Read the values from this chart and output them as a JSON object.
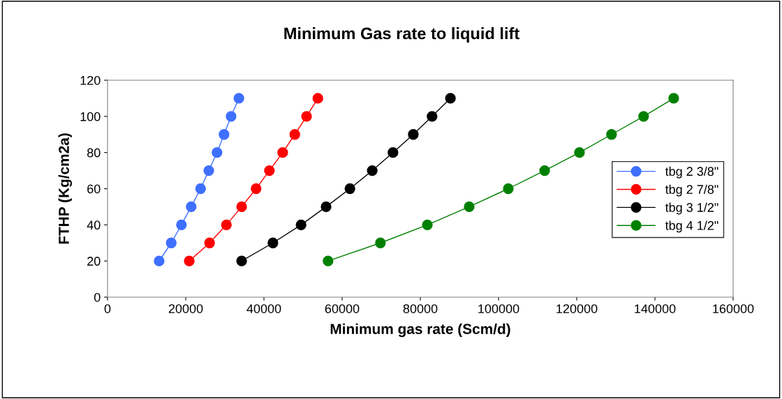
{
  "chart_data": {
    "type": "line",
    "title": "Minimum Gas rate to liquid lift",
    "xlabel": "Minimum gas rate (Scm/d)",
    "ylabel": "FTHP (Kg/cm2a)",
    "xlim": [
      0,
      160000
    ],
    "xticks": [
      0,
      20000,
      40000,
      60000,
      80000,
      100000,
      120000,
      140000,
      160000
    ],
    "ylim": [
      0,
      120
    ],
    "yticks": [
      0,
      20,
      40,
      60,
      80,
      100,
      120
    ],
    "grid": false,
    "legend": "right",
    "marker": "circle",
    "line_style": "solid",
    "series": [
      {
        "name": "tbg 2 3/8\"",
        "color": "#3f6fff",
        "x": [
          13200,
          16300,
          18900,
          21400,
          23800,
          25900,
          28000,
          29800,
          31600,
          33600
        ],
        "values": [
          20,
          30,
          40,
          50,
          60,
          70,
          80,
          90,
          100,
          110
        ]
      },
      {
        "name": "tbg 2 7/8\"",
        "color": "#ff0000",
        "x": [
          20900,
          26100,
          30400,
          34300,
          38000,
          41400,
          44800,
          47900,
          50900,
          53800
        ],
        "values": [
          20,
          30,
          40,
          50,
          60,
          70,
          80,
          90,
          100,
          110
        ]
      },
      {
        "name": "tbg 3 1/2\"",
        "color": "#000000",
        "x": [
          34300,
          42300,
          49500,
          55900,
          62000,
          67700,
          73000,
          78200,
          83000,
          87700
        ],
        "values": [
          20,
          30,
          40,
          50,
          60,
          70,
          80,
          90,
          100,
          110
        ]
      },
      {
        "name": "tbg 4 1/2\"",
        "color": "#008000",
        "x": [
          56400,
          69800,
          81800,
          92500,
          102500,
          111800,
          120700,
          128900,
          137100,
          144800
        ],
        "values": [
          20,
          30,
          40,
          50,
          60,
          70,
          80,
          90,
          100,
          110
        ]
      }
    ]
  }
}
